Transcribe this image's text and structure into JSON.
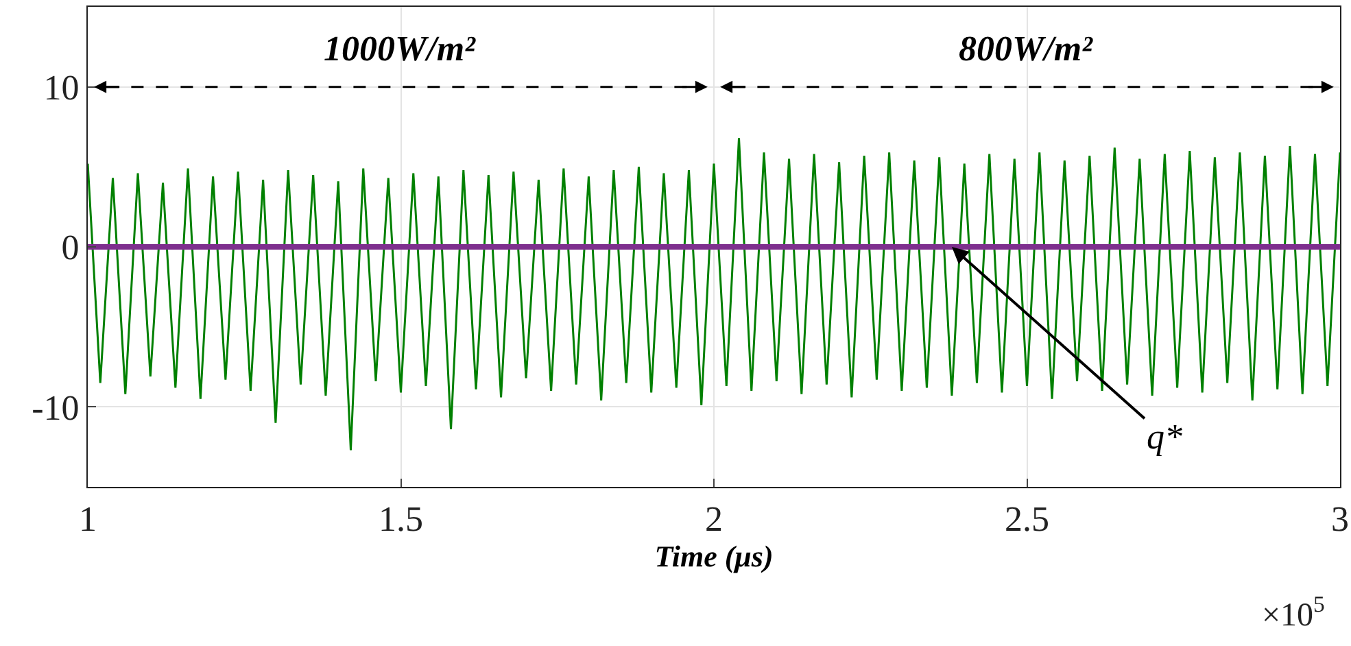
{
  "chart_data": {
    "type": "line",
    "xlabel": "Time (μs)",
    "xlim": [
      1,
      3
    ],
    "xticks": [
      1,
      1.5,
      2,
      2.5,
      3
    ],
    "ylim": [
      -15,
      15
    ],
    "yticks": [
      -10,
      0,
      10
    ],
    "grid": true,
    "marker": "none",
    "line_style": "solid",
    "series": [
      {
        "color": "#008000",
        "x": [
          1,
          1.02,
          1.04,
          1.06,
          1.08,
          1.1,
          1.12,
          1.14,
          1.16,
          1.18,
          1.2,
          1.22,
          1.24,
          1.26,
          1.28,
          1.3,
          1.32,
          1.34,
          1.36,
          1.38,
          1.4,
          1.42,
          1.44,
          1.46,
          1.48,
          1.5,
          1.52,
          1.54,
          1.56,
          1.58,
          1.6,
          1.62,
          1.64,
          1.66,
          1.68,
          1.7,
          1.72,
          1.74,
          1.76,
          1.78,
          1.8,
          1.82,
          1.84,
          1.86,
          1.88,
          1.9,
          1.92,
          1.94,
          1.96,
          1.98,
          2,
          2.02,
          2.04,
          2.06,
          2.08,
          2.1,
          2.12,
          2.14,
          2.16,
          2.18,
          2.2,
          2.22,
          2.24,
          2.26,
          2.28,
          2.3,
          2.32,
          2.34,
          2.36,
          2.38,
          2.4,
          2.42,
          2.44,
          2.46,
          2.48,
          2.5,
          2.52,
          2.54,
          2.56,
          2.58,
          2.6,
          2.62,
          2.64,
          2.66,
          2.68,
          2.7,
          2.72,
          2.74,
          2.76,
          2.78,
          2.8,
          2.82,
          2.84,
          2.86,
          2.88,
          2.9,
          2.92,
          2.94,
          2.96,
          2.98,
          3
        ],
        "values": [
          5.2,
          -8.5,
          4.3,
          -9.2,
          4.6,
          -8.1,
          4.0,
          -8.8,
          4.9,
          -9.5,
          4.4,
          -8.3,
          4.7,
          -9.0,
          4.2,
          -11.0,
          4.8,
          -8.6,
          4.5,
          -9.3,
          4.1,
          -12.7,
          4.9,
          -8.4,
          4.3,
          -9.1,
          4.6,
          -8.7,
          4.4,
          -11.4,
          4.8,
          -8.9,
          4.5,
          -9.4,
          4.7,
          -8.2,
          4.2,
          -9.0,
          4.9,
          -8.6,
          4.4,
          -9.6,
          4.8,
          -8.5,
          5.0,
          -9.1,
          4.6,
          -8.8,
          4.8,
          -9.9,
          5.2,
          -8.7,
          6.8,
          -9.0,
          5.9,
          -8.4,
          5.5,
          -9.2,
          5.8,
          -8.6,
          5.3,
          -9.4,
          5.7,
          -8.3,
          5.9,
          -9.0,
          5.4,
          -8.8,
          5.6,
          -9.3,
          5.2,
          -8.5,
          5.8,
          -9.1,
          5.5,
          -8.7,
          5.9,
          -9.5,
          5.4,
          -8.4,
          5.7,
          -9.0,
          6.2,
          -8.6,
          5.5,
          -9.3,
          5.8,
          -8.8,
          6.0,
          -9.1,
          5.6,
          -8.5,
          5.9,
          -9.6,
          5.7,
          -8.9,
          6.3,
          -9.2,
          5.8,
          -8.7,
          5.9
        ]
      },
      {
        "color": "#7e2f8e",
        "x": [
          1,
          3
        ],
        "values": [
          0,
          0
        ]
      }
    ],
    "annotations": [
      "1000W/m²",
      "800W/m²",
      {
        "text": "q*",
        "x": 2.38,
        "y": 0
      },
      "×10$^{5}$"
    ]
  }
}
